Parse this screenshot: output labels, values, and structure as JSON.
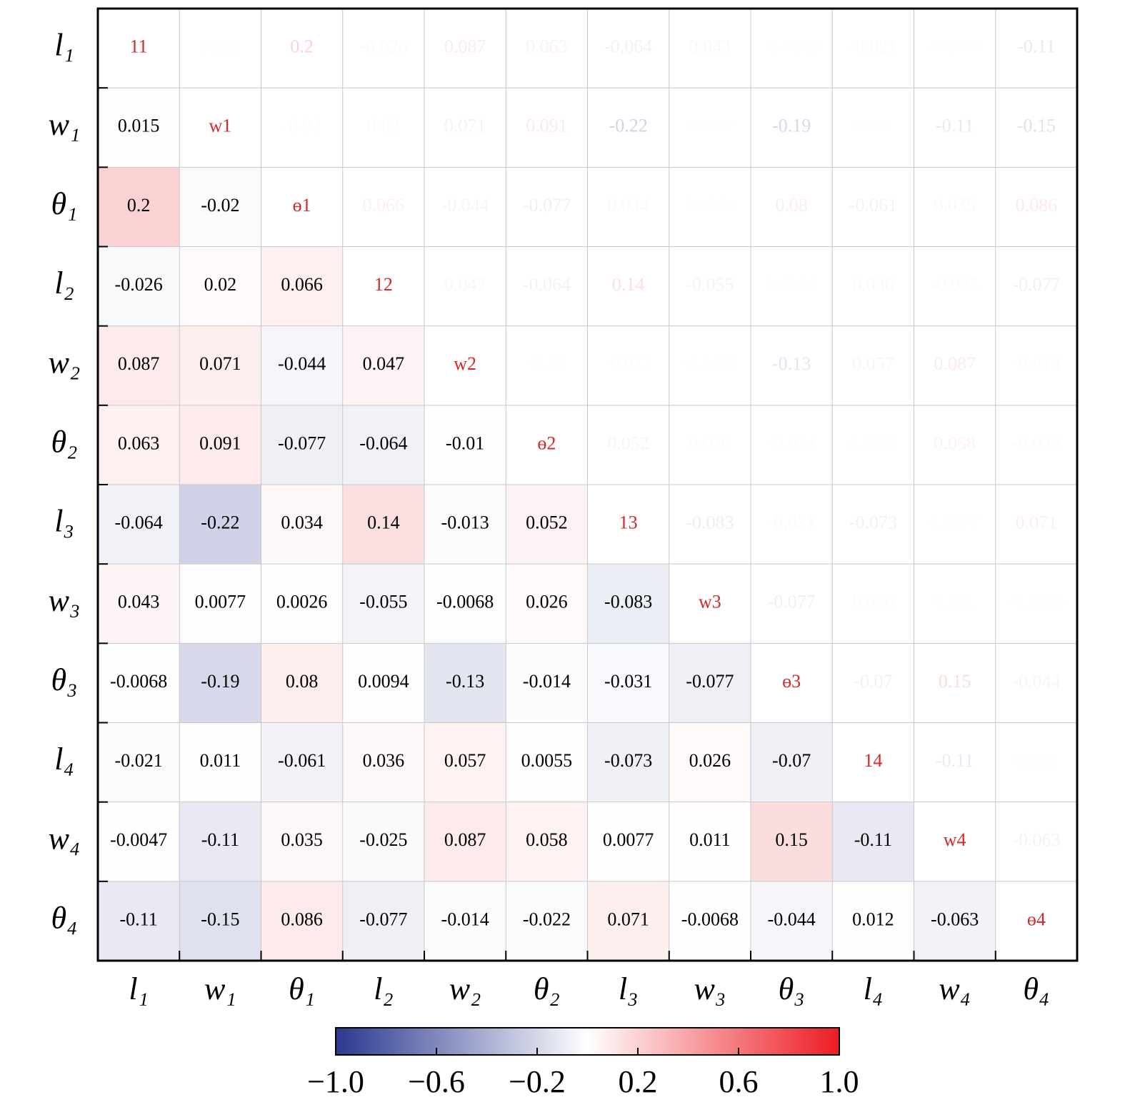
{
  "chart_data": {
    "type": "heatmap",
    "labels": [
      "l₁",
      "w₁",
      "θ₁",
      "l₂",
      "w₂",
      "θ₂",
      "l₃",
      "w₃",
      "θ₃",
      "l₄",
      "w₄",
      "θ₄"
    ],
    "diagonal_labels": [
      "11",
      "w1",
      "ɵ1",
      "12",
      "w2",
      "ɵ2",
      "13",
      "w3",
      "ɵ3",
      "14",
      "w4",
      "ɵ4"
    ],
    "values": [
      [],
      [
        0.015
      ],
      [
        0.2,
        -0.02
      ],
      [
        -0.026,
        0.02,
        0.066
      ],
      [
        0.087,
        0.071,
        -0.044,
        0.047
      ],
      [
        0.063,
        0.091,
        -0.077,
        -0.064,
        -0.01
      ],
      [
        -0.064,
        -0.22,
        0.034,
        0.14,
        -0.013,
        0.052
      ],
      [
        0.043,
        0.0077,
        0.0026,
        -0.055,
        -0.0068,
        0.026,
        -0.083
      ],
      [
        -0.0068,
        -0.19,
        0.08,
        0.0094,
        -0.13,
        -0.014,
        -0.031,
        -0.077
      ],
      [
        -0.021,
        0.011,
        -0.061,
        0.036,
        0.057,
        0.0055,
        -0.073,
        0.026,
        -0.07
      ],
      [
        -0.0047,
        -0.11,
        0.035,
        -0.025,
        0.087,
        0.058,
        0.0077,
        0.011,
        0.15,
        -0.11
      ],
      [
        -0.11,
        -0.15,
        0.086,
        -0.077,
        -0.014,
        -0.022,
        0.071,
        -0.0068,
        -0.044,
        0.012,
        -0.063
      ]
    ],
    "colormap": [
      "#2b3990",
      "#ffffff",
      "#ed1c24"
    ],
    "diagonal_color": "#d62728",
    "grid": true,
    "clim": [
      -1,
      1
    ],
    "cticks": [
      {
        "value": -1,
        "label": "−1.0"
      },
      {
        "value": -0.6,
        "label": "−0.6"
      },
      {
        "value": -0.2,
        "label": "−0.2"
      },
      0.2,
      0.6,
      {
        "value": 1,
        "label": "1.0"
      }
    ]
  }
}
